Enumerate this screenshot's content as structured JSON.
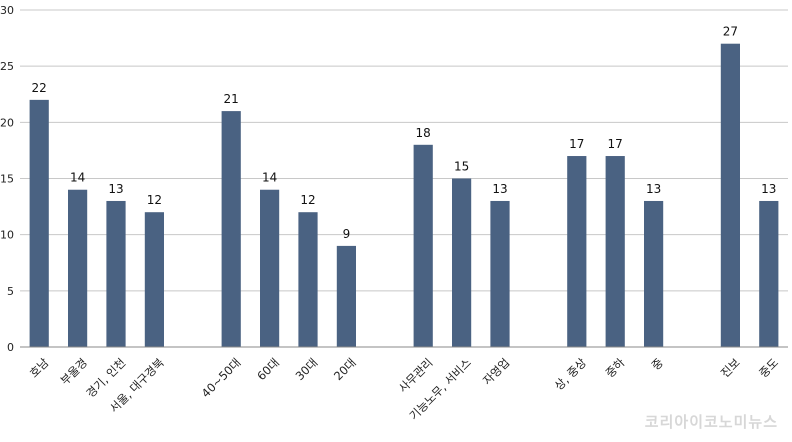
{
  "chart_data": {
    "type": "bar",
    "title": "",
    "xlabel": "",
    "ylabel": "",
    "ylim": [
      0,
      30
    ],
    "yticks": [
      0,
      5,
      10,
      15,
      20,
      25,
      30
    ],
    "grid": true,
    "bar_color": "#4a6282",
    "groups": [
      {
        "categories": [
          "호남",
          "부울경",
          "경기, 인천",
          "서울, 대구경북"
        ],
        "values": [
          22,
          14,
          13,
          12
        ]
      },
      {
        "categories": [
          "40~50대",
          "60대",
          "30대",
          "20대"
        ],
        "values": [
          21,
          14,
          12,
          9
        ]
      },
      {
        "categories": [
          "사무관리",
          "기능노무, 서비스",
          "자영업"
        ],
        "values": [
          18,
          15,
          13
        ]
      },
      {
        "categories": [
          "상, 중상",
          "중하",
          "중"
        ],
        "values": [
          17,
          17,
          13
        ]
      },
      {
        "categories": [
          "진보",
          "중도"
        ],
        "values": [
          27,
          13
        ]
      }
    ]
  },
  "watermark": "코리아이코노미뉴스"
}
